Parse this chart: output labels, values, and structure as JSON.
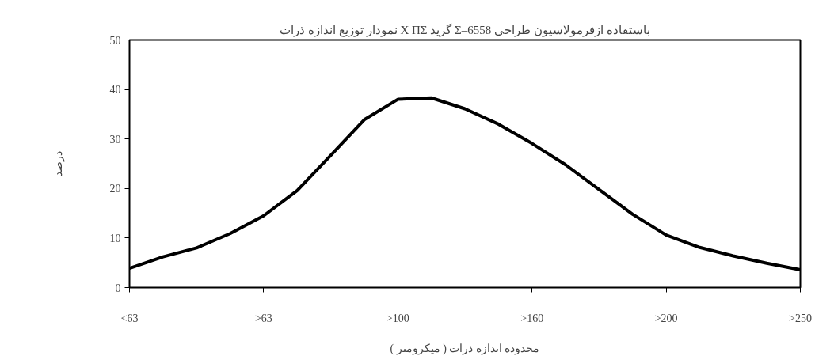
{
  "chart_data": {
    "type": "line",
    "title": "نمودار توزیع اندازه ذرات X ΠΣ گرید Σ–6558 باستفاده ازفرمولاسیون طراحی",
    "xlabel": "محدوده اندازه ذرات ( میکرومتر )",
    "ylabel": "درصد",
    "categories": [
      "<63",
      null,
      null,
      null,
      ">63",
      null,
      null,
      null,
      ">100",
      null,
      null,
      null,
      ">160",
      null,
      null,
      null,
      ">200",
      null,
      null,
      null,
      ">250"
    ],
    "series": [
      {
        "color": "#000000",
        "values": [
          3.9,
          6.2,
          8.0,
          10.9,
          14.5,
          19.6,
          26.7,
          33.9,
          38.0,
          38.3,
          36.1,
          33.0,
          29.1,
          24.8,
          19.8,
          14.8,
          10.6,
          8.1,
          6.4,
          4.9,
          3.6
        ]
      }
    ],
    "ylim": [
      0,
      50
    ],
    "yticks": [
      0,
      10,
      20,
      30,
      40,
      50
    ],
    "grid": false,
    "marker": "none",
    "line_style": "solid"
  }
}
